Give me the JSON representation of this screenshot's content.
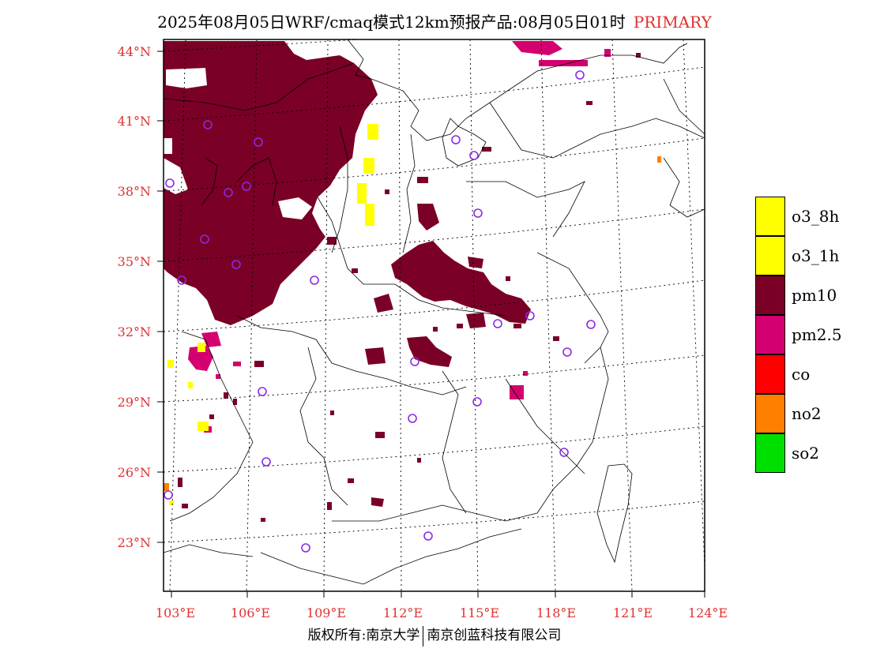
{
  "title": {
    "main": "2025年08月05日WRF/cmaq模式12km预报产品:08月05日01时",
    "tag": "PRIMARY"
  },
  "footer": {
    "left": "版权所有:南京大学",
    "right": "南京创蓝科技有限公司"
  },
  "axes": {
    "lat_labels": [
      "44°N",
      "41°N",
      "38°N",
      "35°N",
      "32°N",
      "29°N",
      "26°N",
      "23°N"
    ],
    "lon_labels": [
      "103°E",
      "106°E",
      "109°E",
      "112°E",
      "115°E",
      "118°E",
      "121°E",
      "124°E"
    ],
    "label_color": "#e03030"
  },
  "legend": [
    {
      "label": "o3_8h",
      "color": "#ffff00"
    },
    {
      "label": "o3_1h",
      "color": "#ffff00"
    },
    {
      "label": "pm10",
      "color": "#7a0026"
    },
    {
      "label": "pm2.5",
      "color": "#d4006f"
    },
    {
      "label": "co",
      "color": "#ff0000"
    },
    {
      "label": "no2",
      "color": "#ff7f00"
    },
    {
      "label": "so2",
      "color": "#00e000"
    }
  ],
  "colors": {
    "pm10": "#7a0026",
    "pm25": "#d4006f",
    "o3": "#ffff00",
    "no2": "#ff7f00",
    "station": "#8a2be2"
  }
}
